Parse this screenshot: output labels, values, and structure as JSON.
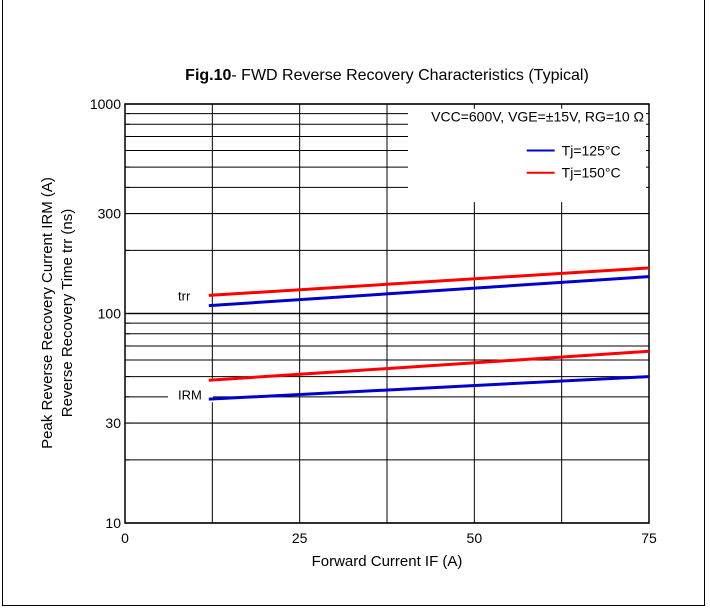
{
  "chart_data": {
    "type": "line",
    "title": {
      "bold": "Fig.10",
      "rest": "- FWD Reverse Recovery Characteristics (Typical)"
    },
    "xlabel": "Forward Current IF  (A)",
    "ylabel_line1": "Peak Reverse Recovery Current  IRM (A)",
    "ylabel_line2": "Reverse Recovery Time trr  (ns)",
    "xlim": [
      0,
      75
    ],
    "ylim": [
      10,
      1000
    ],
    "y_scale": "log",
    "x_ticks": [
      0,
      25,
      50,
      75
    ],
    "x_tick_labels": [
      "0",
      "25",
      "50",
      "75"
    ],
    "y_ticks": [
      10,
      30,
      100,
      300,
      1000
    ],
    "y_tick_labels": [
      "10",
      "30",
      "100",
      "300",
      "1000"
    ],
    "grid": true,
    "condition_text": "VCC=600V, VGE=±15V, RG=10 Ω",
    "legend": [
      {
        "name": "Tj=125°C",
        "color": "#0000cc"
      },
      {
        "name": "Tj=150°C",
        "color": "#ff0000"
      }
    ],
    "legend_position": "top-right",
    "series": [
      {
        "name": "Tj=150°C",
        "group": "trr",
        "color": "#ff0000",
        "x": [
          12,
          75
        ],
        "y": [
          122,
          165
        ]
      },
      {
        "name": "Tj=125°C",
        "group": "trr",
        "color": "#0000cc",
        "x": [
          12,
          75
        ],
        "y": [
          109,
          150
        ]
      },
      {
        "name": "Tj=150°C",
        "group": "IRM",
        "color": "#ff0000",
        "x": [
          12,
          75
        ],
        "y": [
          48,
          66
        ]
      },
      {
        "name": "Tj=125°C",
        "group": "IRM",
        "color": "#0000cc",
        "x": [
          12,
          75
        ],
        "y": [
          39,
          50
        ]
      }
    ],
    "annotations": [
      {
        "text": "trr",
        "x": 10,
        "y": 122
      },
      {
        "text": "IRM",
        "x": 10,
        "y": 41
      }
    ]
  }
}
